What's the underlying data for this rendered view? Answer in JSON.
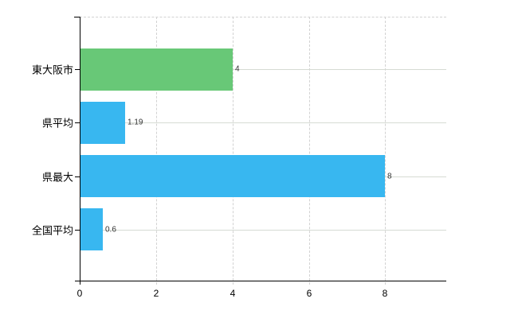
{
  "chart_data": {
    "type": "bar",
    "orientation": "horizontal",
    "title": "",
    "categories": [
      "東大阪市",
      "県平均",
      "県最大",
      "全国平均"
    ],
    "values": [
      4,
      1.19,
      8,
      0.6
    ],
    "value_labels": [
      "4",
      "1.19",
      "8",
      "0.6"
    ],
    "bar_colors": [
      "#68c877",
      "#38b7f0",
      "#38b7f0",
      "#38b7f0"
    ],
    "x_tick_values": [
      0,
      2,
      4,
      6,
      8
    ],
    "x_tick_labels": [
      "0",
      "2",
      "4",
      "6",
      "8"
    ],
    "xlim": [
      0,
      9.6
    ],
    "grid": true,
    "legend": false
  },
  "colors": {
    "bar_green": "#68c877",
    "bar_blue": "#38b7f0",
    "grid_horizontal": "#d6dbd3",
    "grid_vertical_dashed": "#d2d2d2",
    "axis": "#000000",
    "category_text": "#000000",
    "value_text": "#333333",
    "background": "#ffffff"
  }
}
